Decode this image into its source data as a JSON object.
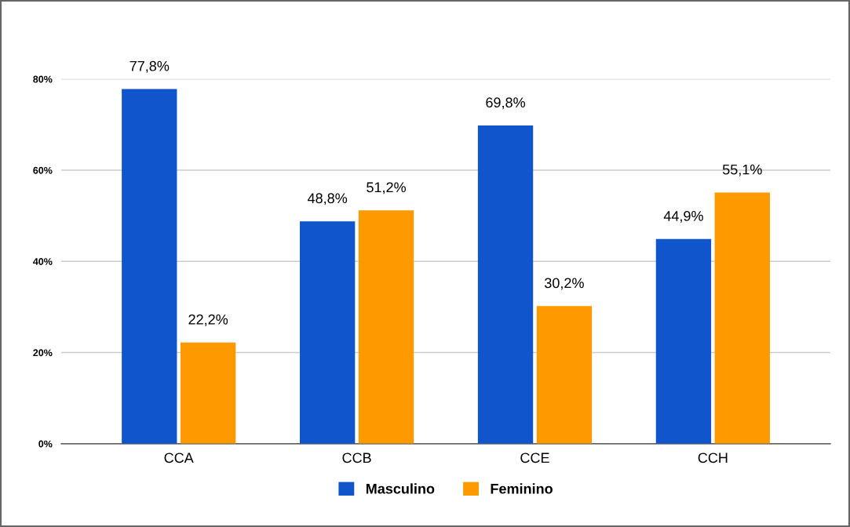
{
  "chart_data": {
    "type": "bar",
    "categories": [
      "CCA",
      "CCB",
      "CCE",
      "CCH"
    ],
    "series": [
      {
        "name": "Masculino",
        "color": "#1155cc",
        "values": [
          77.8,
          48.8,
          69.8,
          44.9
        ],
        "value_labels": [
          "77,8%",
          "48,8%",
          "69,8%",
          "44,9%"
        ]
      },
      {
        "name": "Feminino",
        "color": "#ff9900",
        "values": [
          22.2,
          51.2,
          30.2,
          55.1
        ],
        "value_labels": [
          "22,2%",
          "51,2%",
          "30,2%",
          "55,1%"
        ]
      }
    ],
    "ylim": [
      0,
      80
    ],
    "yticks": [
      {
        "value": 0,
        "label": "0%"
      },
      {
        "value": 20,
        "label": "20%"
      },
      {
        "value": 40,
        "label": "40%"
      },
      {
        "value": 60,
        "label": "60%"
      },
      {
        "value": 80,
        "label": "80%"
      }
    ],
    "grid": "y",
    "legend": "bottom"
  }
}
